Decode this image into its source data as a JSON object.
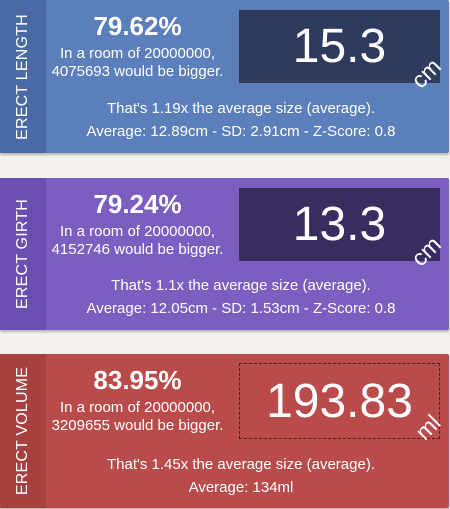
{
  "cards": [
    {
      "side_label": "ERECT LENGTH",
      "percent": "79.62%",
      "room_line1": "In a room of 20000000,",
      "room_line2": "4075693 would be bigger.",
      "value": "15.3",
      "unit": "cm",
      "ratio_line": "That's 1.19x the average size (average).",
      "stats_line": "Average: 12.89cm - SD: 2.91cm - Z-Score: 0.8",
      "colors": {
        "bg": "#5b7fbb",
        "side": "#4a6aa6",
        "box": "#2e3b5c"
      }
    },
    {
      "side_label": "ERECT GIRTH",
      "percent": "79.24%",
      "room_line1": "In a room of 20000000,",
      "room_line2": "4152746 would be bigger.",
      "value": "13.3",
      "unit": "cm",
      "ratio_line": "That's 1.1x the average size (average).",
      "stats_line": "Average: 12.05cm - SD: 1.53cm - Z-Score: 0.8",
      "colors": {
        "bg": "#7b5ec0",
        "side": "#6a4fb0",
        "box": "#3b2c60"
      }
    },
    {
      "side_label": "ERECT VOLUME",
      "percent": "83.95%",
      "room_line1": "In a room of 20000000,",
      "room_line2": "3209655 would be bigger.",
      "value": "193.83",
      "unit": "ml",
      "ratio_line": "That's 1.45x the average size (average).",
      "stats_line": "Average: 134ml",
      "colors": {
        "bg": "#b94b4b",
        "side": "#a84040",
        "box": "#b94b4b"
      }
    }
  ]
}
